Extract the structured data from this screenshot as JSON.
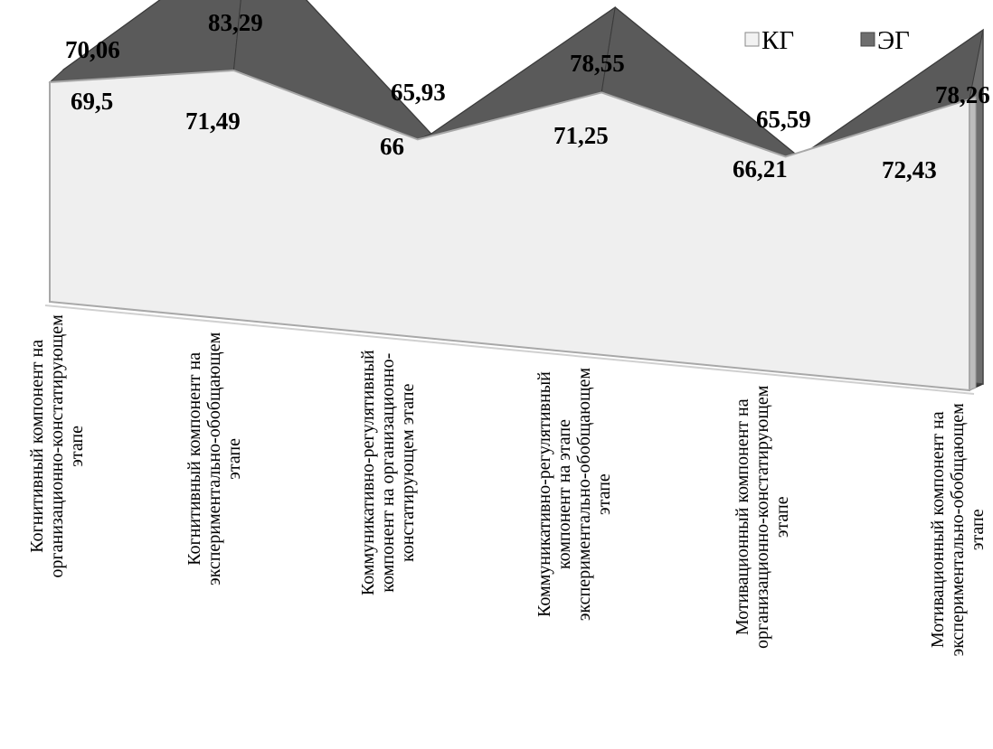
{
  "chart_data": {
    "type": "area",
    "categories": [
      [
        "Когнитивный компонент на",
        "организационно-констатирующем",
        "этапе"
      ],
      [
        "Когнитивный компонент на",
        "экспериментально-обобщающем",
        "этапе"
      ],
      [
        "Коммуникативно-регулятивный",
        "компонент на организационно-",
        "констатирующем этапе"
      ],
      [
        "Коммуникативно-регулятивный",
        "компонент на  этапе",
        "экспериментально-обобщающем",
        "этапе"
      ],
      [
        "Мотивационный компонент на",
        "организационно-констатирующем",
        "этапе"
      ],
      [
        "Мотивационный компонент на",
        "экспериментально-обобщающем",
        "этапе"
      ]
    ],
    "series": [
      {
        "name": "КГ",
        "values": [
          69.5,
          71.49,
          66,
          71.25,
          66.21,
          72.43
        ],
        "labels": [
          "69,5",
          "71,49",
          "66",
          "71,25",
          "66,21",
          "72,43"
        ],
        "color": "#efefef"
      },
      {
        "name": "ЭГ",
        "values": [
          70.06,
          83.29,
          65.93,
          78.55,
          65.59,
          78.26
        ],
        "labels": [
          "70,06",
          "83,29",
          "65,93",
          "78,55",
          "65,59",
          "78,26"
        ],
        "color": "#6e6e6e"
      }
    ],
    "title": "",
    "xlabel": "",
    "ylabel": "",
    "legend_position": "top-right",
    "style": "3d",
    "grid": false
  }
}
